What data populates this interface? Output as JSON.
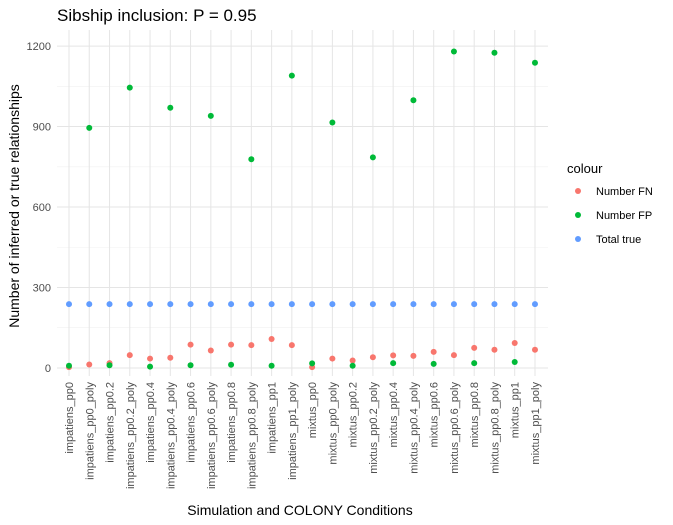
{
  "chart_data": {
    "type": "scatter",
    "title": "Sibship inclusion: P = 0.95",
    "xlabel": "Simulation and COLONY Conditions",
    "ylabel": "Number of inferred or true relationships",
    "ylim": [
      -30,
      1260
    ],
    "yticks": [
      0,
      300,
      600,
      900,
      1200
    ],
    "grid": true,
    "legend_position": "right",
    "legend_title": "colour",
    "categories": [
      "impatiens_pp0",
      "impatiens_pp0_poly",
      "impatiens_pp0.2",
      "impatiens_pp0.2_poly",
      "impatiens_pp0.4",
      "impatiens_pp0.4_poly",
      "impatiens_pp0.6",
      "impatiens_pp0.6_poly",
      "impatiens_pp0.8",
      "impatiens_pp0.8_poly",
      "impatiens_pp1",
      "impatiens_pp1_poly",
      "mixtus_pp0",
      "mixtus_pp0_poly",
      "mixtus_pp0.2",
      "mixtus_pp0.2_poly",
      "mixtus_pp0.4",
      "mixtus_pp0.4_poly",
      "mixtus_pp0.6",
      "mixtus_pp0.6_poly",
      "mixtus_pp0.8",
      "mixtus_pp0.8_poly",
      "mixtus_pp1",
      "mixtus_pp1_poly"
    ],
    "series": [
      {
        "name": "Number FN",
        "color": "#F8766D",
        "values": [
          3,
          13,
          18,
          48,
          35,
          38,
          87,
          65,
          87,
          85,
          108,
          85,
          3,
          35,
          28,
          40,
          47,
          45,
          60,
          48,
          75,
          68,
          93,
          68
        ]
      },
      {
        "name": "Number FP",
        "color": "#00BA38",
        "values": [
          8,
          895,
          10,
          1045,
          5,
          970,
          10,
          940,
          12,
          778,
          8,
          1090,
          17,
          915,
          8,
          785,
          18,
          998,
          15,
          1180,
          18,
          1175,
          22,
          1138
        ]
      },
      {
        "name": "Total true",
        "color": "#619CFF",
        "values": [
          238,
          238,
          238,
          238,
          238,
          238,
          238,
          238,
          238,
          238,
          238,
          238,
          238,
          238,
          238,
          238,
          238,
          238,
          238,
          238,
          238,
          238,
          238,
          238
        ]
      }
    ]
  }
}
